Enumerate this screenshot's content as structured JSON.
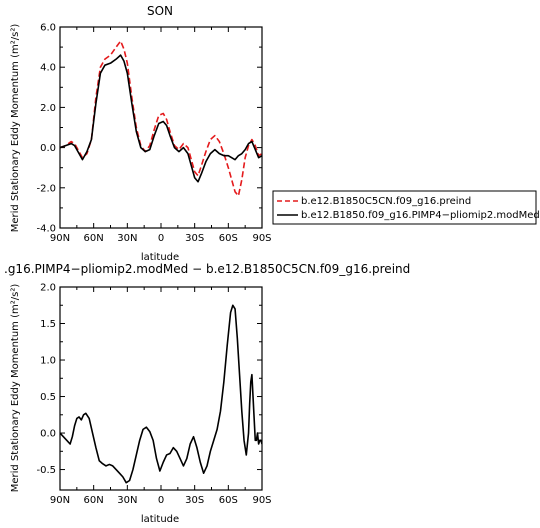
{
  "chart_data": [
    {
      "type": "line",
      "title": "SON",
      "xlabel": "latitude",
      "ylabel": "Merid Stationary Eddy Momentum (m²/s²)",
      "ylim": [
        -4.0,
        6.0
      ],
      "yticks": [
        "6.0",
        "4.0",
        "2.0",
        "0.0",
        "-2.0",
        "-4.0"
      ],
      "yticks_val": [
        6,
        4,
        2,
        0,
        -2,
        -4
      ],
      "xticks": [
        "90N",
        "60N",
        "30N",
        "0",
        "30S",
        "60S",
        "90S"
      ],
      "xticks_val": [
        90,
        60,
        30,
        0,
        -30,
        -60,
        -90
      ],
      "legend_placement": "right",
      "series": [
        {
          "name": "b.e12.B1850C5CN.f09_g16.preind",
          "color": "#e41a1c",
          "dashed": true,
          "x": [
            90,
            85,
            80,
            77,
            73,
            70,
            66,
            62,
            58,
            54,
            50,
            45,
            40,
            36,
            33,
            30,
            26,
            22,
            18,
            14,
            10,
            6,
            2,
            -2,
            -5,
            -8,
            -12,
            -16,
            -20,
            -24,
            -27,
            -30,
            -33,
            -36,
            -40,
            -44,
            -48,
            -52,
            -56,
            -60,
            -63,
            -66,
            -69,
            -72,
            -75,
            -78,
            -81,
            -84,
            -87,
            -90
          ],
          "y": [
            0.0,
            0.1,
            0.3,
            0.2,
            -0.2,
            -0.5,
            -0.3,
            0.4,
            2.5,
            4.0,
            4.4,
            4.6,
            5.0,
            5.3,
            4.9,
            4.2,
            2.5,
            1.0,
            0.1,
            -0.2,
            0.1,
            0.9,
            1.6,
            1.7,
            1.4,
            0.8,
            0.1,
            -0.1,
            0.2,
            0.0,
            -0.6,
            -1.2,
            -1.4,
            -0.9,
            -0.2,
            0.4,
            0.6,
            0.3,
            -0.3,
            -1.0,
            -1.6,
            -2.2,
            -2.4,
            -1.6,
            -0.5,
            0.1,
            0.4,
            0.1,
            -0.4,
            -0.3
          ]
        },
        {
          "name": "b.e12.B1850.f09_g16.PIMP4−pliomip2.modMed",
          "color": "#000000",
          "dashed": false,
          "x": [
            90,
            85,
            80,
            77,
            73,
            70,
            66,
            62,
            58,
            54,
            50,
            45,
            40,
            36,
            33,
            30,
            26,
            22,
            18,
            14,
            10,
            6,
            2,
            -2,
            -5,
            -8,
            -12,
            -16,
            -20,
            -24,
            -27,
            -30,
            -33,
            -36,
            -40,
            -44,
            -48,
            -52,
            -56,
            -60,
            -63,
            -66,
            -69,
            -72,
            -75,
            -78,
            -81,
            -84,
            -87,
            -90
          ],
          "y": [
            0.0,
            0.1,
            0.2,
            0.1,
            -0.3,
            -0.6,
            -0.2,
            0.4,
            2.2,
            3.7,
            4.1,
            4.2,
            4.4,
            4.6,
            4.3,
            3.7,
            2.2,
            0.8,
            0.0,
            -0.2,
            -0.1,
            0.6,
            1.2,
            1.3,
            1.1,
            0.6,
            0.0,
            -0.2,
            0.0,
            -0.3,
            -0.9,
            -1.5,
            -1.7,
            -1.3,
            -0.7,
            -0.3,
            -0.1,
            -0.3,
            -0.4,
            -0.4,
            -0.5,
            -0.6,
            -0.4,
            -0.3,
            -0.1,
            0.2,
            0.3,
            -0.1,
            -0.5,
            -0.4
          ]
        }
      ]
    },
    {
      "type": "line",
      "title": ".g16.PIMP4−pliomip2.modMed − b.e12.B1850C5CN.f09_g16.preind",
      "xlabel": "latitude",
      "ylabel": "Merid Stationary Eddy Momentum (m²/s²)",
      "ylim": [
        -0.78,
        2.0
      ],
      "yticks": [
        "2.0",
        "1.5",
        "1.0",
        "0.5",
        "0.0",
        "-0.5"
      ],
      "yticks_val": [
        2.0,
        1.5,
        1.0,
        0.5,
        0.0,
        -0.5
      ],
      "xticks": [
        "90N",
        "60N",
        "30N",
        "0",
        "30S",
        "60S",
        "90S"
      ],
      "xticks_val": [
        90,
        60,
        30,
        0,
        -30,
        -60,
        -90
      ],
      "series": [
        {
          "color": "#000000",
          "dashed": false,
          "x": [
            90,
            87,
            84,
            81,
            79,
            77,
            75,
            73,
            71,
            69,
            67,
            64,
            61,
            58,
            55,
            52,
            49,
            46,
            43,
            40,
            37,
            34,
            31,
            28,
            25,
            22,
            19,
            16,
            13,
            10,
            7,
            4,
            1,
            -2,
            -5,
            -8,
            -11,
            -14,
            -17,
            -20,
            -23,
            -26,
            -29,
            -32,
            -35,
            -38,
            -41,
            -44,
            -47,
            -50,
            -53,
            -56,
            -59,
            -62,
            -64,
            -66,
            -68,
            -70,
            -72,
            -74,
            -76,
            -78,
            -79,
            -80,
            -81,
            -82,
            -83,
            -84,
            -85,
            -86,
            -87,
            -88,
            -89,
            -90
          ],
          "y": [
            0.0,
            -0.05,
            -0.1,
            -0.15,
            -0.05,
            0.1,
            0.2,
            0.22,
            0.18,
            0.25,
            0.27,
            0.2,
            0.0,
            -0.2,
            -0.38,
            -0.42,
            -0.45,
            -0.43,
            -0.45,
            -0.5,
            -0.55,
            -0.6,
            -0.68,
            -0.65,
            -0.5,
            -0.3,
            -0.1,
            0.05,
            0.08,
            0.02,
            -0.1,
            -0.35,
            -0.52,
            -0.4,
            -0.3,
            -0.28,
            -0.2,
            -0.25,
            -0.35,
            -0.45,
            -0.35,
            -0.15,
            -0.05,
            -0.2,
            -0.4,
            -0.55,
            -0.45,
            -0.25,
            -0.1,
            0.05,
            0.3,
            0.7,
            1.2,
            1.65,
            1.75,
            1.7,
            1.3,
            0.8,
            0.3,
            -0.1,
            -0.3,
            0.0,
            0.4,
            0.7,
            0.8,
            0.5,
            0.2,
            -0.1,
            -0.1,
            0.0,
            -0.15,
            -0.1,
            -0.1,
            -0.15
          ]
        }
      ]
    }
  ],
  "legend": {
    "entries": [
      "b.e12.B1850C5CN.f09_g16.preind",
      "b.e12.B1850.f09_g16.PIMP4−pliomip2.modMed"
    ]
  }
}
